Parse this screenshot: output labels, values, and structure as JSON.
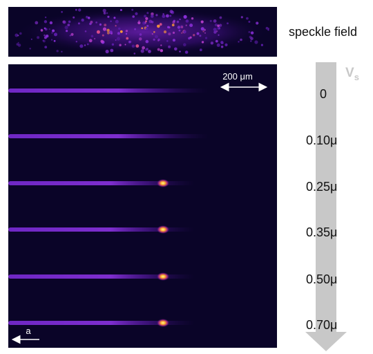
{
  "speckle_label": "speckle field",
  "velocity_axis": {
    "symbol": "V",
    "subscript": "s"
  },
  "velocities": [
    "0",
    "0.10μ",
    "0.25μ",
    "0.35μ",
    "0.50μ",
    "0.70μ"
  ],
  "scale_bar": {
    "label": "200 μm"
  },
  "acceleration_label": "a",
  "colors": {
    "background": "#0a0428",
    "beam": "#7a2bd6",
    "hot": "#ffd23a",
    "arrow": "#c8c8c8"
  }
}
